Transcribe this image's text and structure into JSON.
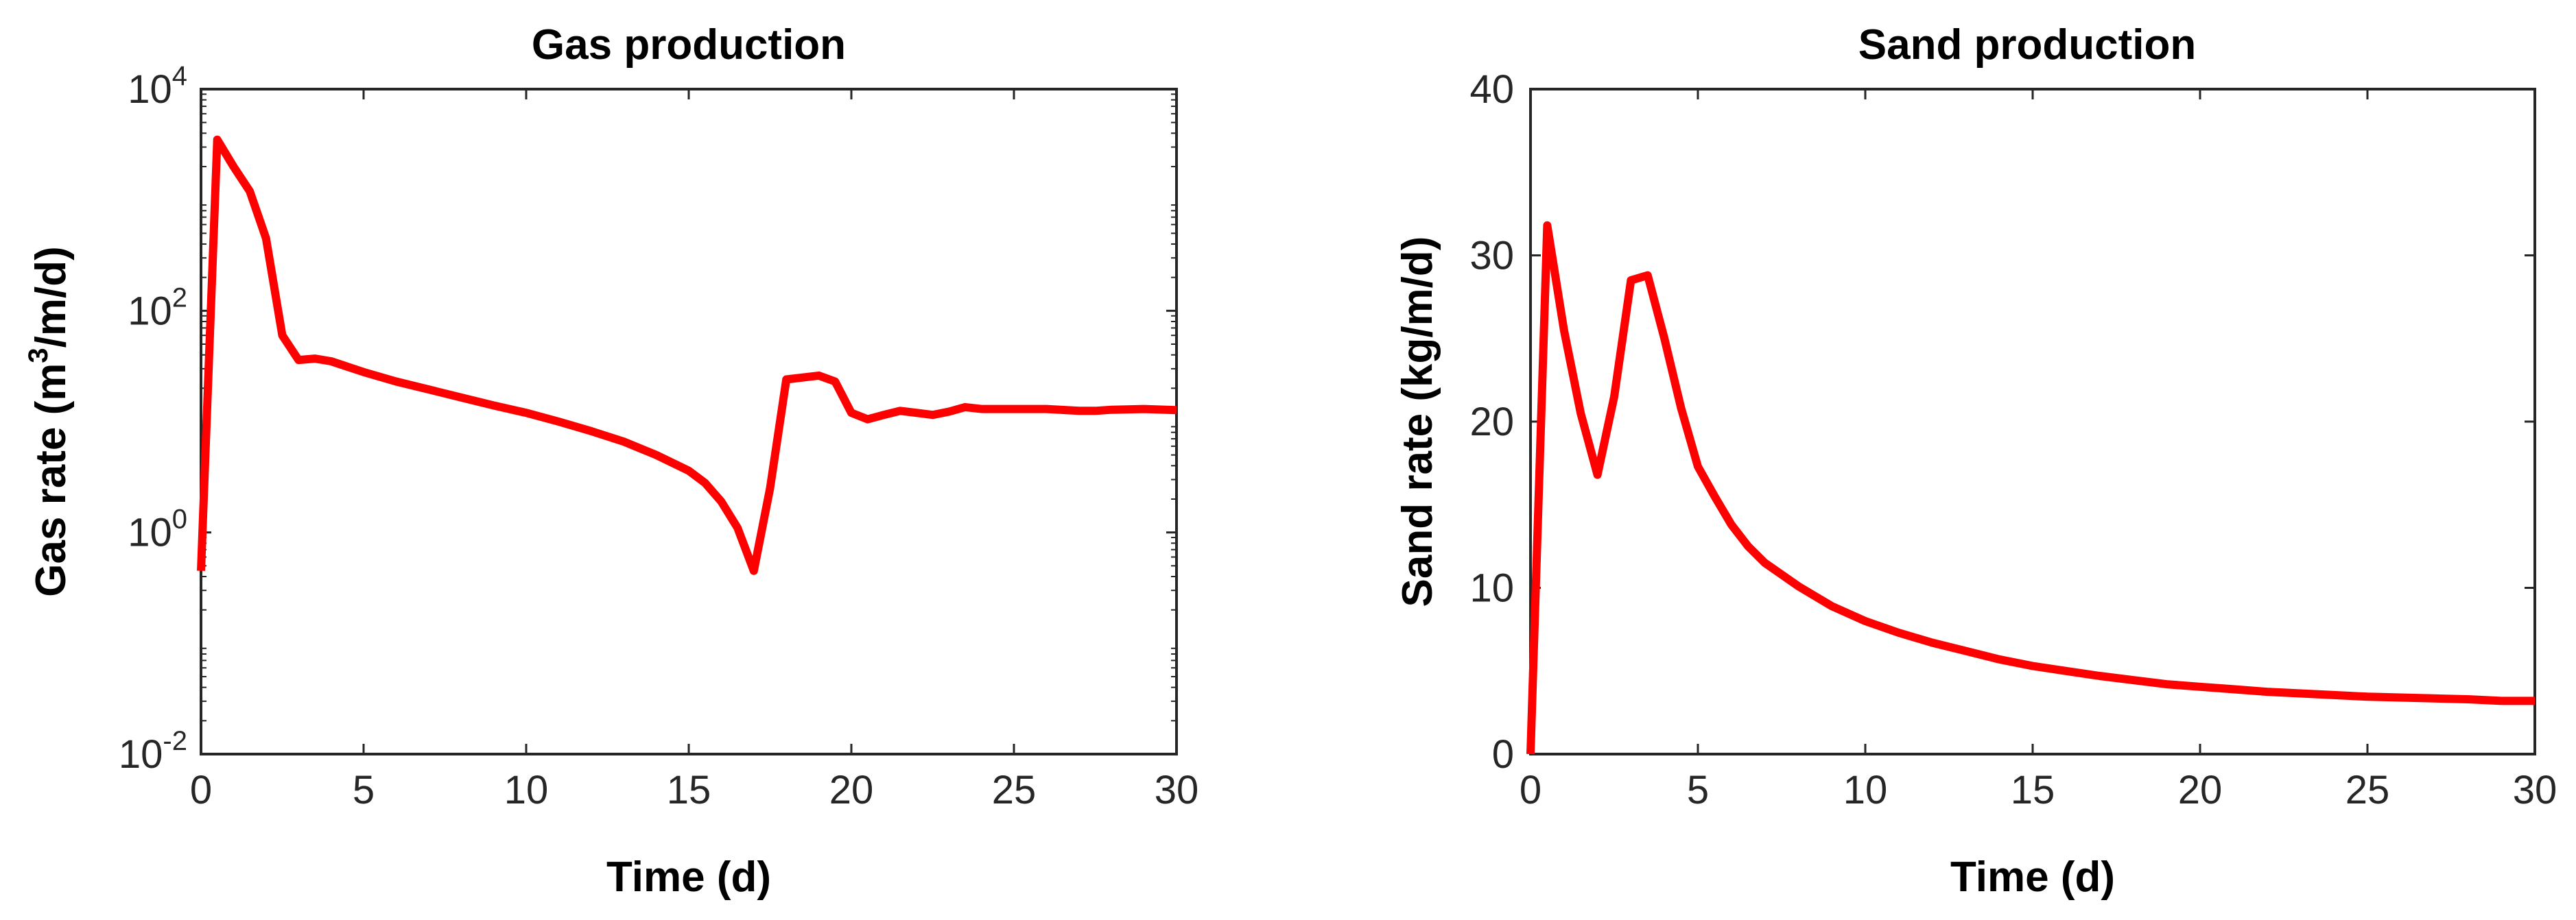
{
  "chart_data": [
    {
      "type": "line",
      "title": "Gas production",
      "xlabel": "Time (d)",
      "ylabel_main": "Gas rate (m",
      "ylabel_sup": "3",
      "ylabel_tail": "/m/d)",
      "xlim": [
        0,
        30
      ],
      "ylim": [
        0.01,
        10000
      ],
      "yscale": "log",
      "xticks": [
        0,
        5,
        10,
        15,
        20,
        25,
        30
      ],
      "xtick_labels": [
        "0",
        "5",
        "10",
        "15",
        "20",
        "25",
        "30"
      ],
      "yticks": [
        {
          "value": 0.01,
          "base": "10",
          "exp": "-2"
        },
        {
          "value": 1,
          "base": "10",
          "exp": "0"
        },
        {
          "value": 100,
          "base": "10",
          "exp": "2"
        },
        {
          "value": 10000,
          "base": "10",
          "exp": "4"
        }
      ],
      "grid": false,
      "series": [
        {
          "color": "#ff0000",
          "x": [
            0,
            0.5,
            1,
            1.5,
            2,
            2.5,
            3,
            3.5,
            4,
            5,
            6,
            7,
            8,
            9,
            10,
            11,
            12,
            13,
            14,
            15,
            15.5,
            16,
            16.5,
            17,
            17.5,
            18,
            18.5,
            19,
            19.5,
            20,
            20.5,
            21,
            21.5,
            22,
            22.5,
            23,
            23.5,
            24,
            25,
            26,
            27,
            27.5,
            28,
            29,
            30
          ],
          "y": [
            0.45,
            3500,
            2000,
            1200,
            450,
            60,
            36,
            37,
            35,
            28,
            23,
            19.5,
            16.5,
            14,
            12,
            10,
            8.2,
            6.6,
            5,
            3.6,
            2.8,
            1.9,
            1.1,
            0.45,
            2.5,
            24,
            25,
            26,
            23,
            12,
            10.5,
            11.5,
            12.5,
            12,
            11.5,
            12.3,
            13.5,
            13,
            13,
            13,
            12.5,
            12.5,
            12.8,
            13,
            12.7
          ]
        }
      ]
    },
    {
      "type": "line",
      "title": "Sand production",
      "xlabel": "Time (d)",
      "ylabel": "Sand rate (kg/m/d)",
      "xlim": [
        0,
        30
      ],
      "ylim": [
        0,
        40
      ],
      "xticks": [
        0,
        5,
        10,
        15,
        20,
        25,
        30
      ],
      "xtick_labels": [
        "0",
        "5",
        "10",
        "15",
        "20",
        "25",
        "30"
      ],
      "yticks": [
        0,
        10,
        20,
        30,
        40
      ],
      "ytick_labels": [
        "0",
        "10",
        "20",
        "30",
        "40"
      ],
      "grid": false,
      "series": [
        {
          "color": "#ff0000",
          "x": [
            0,
            0.5,
            1,
            1.5,
            2,
            2.5,
            3,
            3.5,
            4,
            4.5,
            5,
            5.5,
            6,
            6.5,
            7,
            8,
            9,
            10,
            11,
            12,
            13,
            14,
            15,
            16,
            17,
            18,
            19,
            20,
            21,
            22,
            23,
            24,
            25,
            26,
            27,
            28,
            29,
            30
          ],
          "y": [
            0,
            31.8,
            25.5,
            20.5,
            16.8,
            21.5,
            28.5,
            28.8,
            25,
            20.8,
            17.3,
            15.5,
            13.8,
            12.5,
            11.5,
            10.1,
            8.9,
            8.0,
            7.3,
            6.7,
            6.2,
            5.7,
            5.3,
            5.0,
            4.7,
            4.45,
            4.2,
            4.05,
            3.9,
            3.75,
            3.65,
            3.55,
            3.45,
            3.4,
            3.35,
            3.3,
            3.2,
            3.2
          ]
        }
      ]
    }
  ]
}
